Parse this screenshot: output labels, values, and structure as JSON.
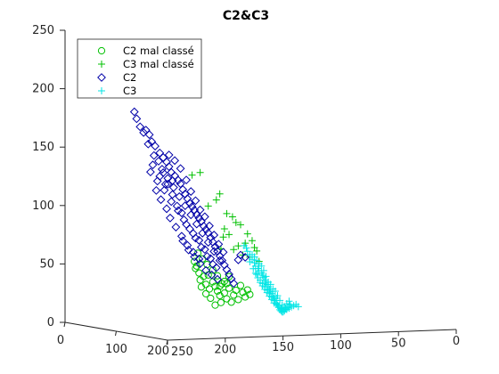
{
  "chart_data": {
    "type": "scatter",
    "projection": "3d",
    "title": "C2&C3",
    "xlabel": "",
    "ylabel": "",
    "zlabel": "",
    "grid": false,
    "legend_location": "top-left",
    "axis_ranges": {
      "a": [
        0,
        200
      ],
      "b": [
        0,
        250
      ],
      "z": [
        0,
        250
      ]
    },
    "ticks": {
      "z": [
        "0",
        "50",
        "100",
        "150",
        "200",
        "250"
      ],
      "a": [
        "0",
        "100",
        "200"
      ],
      "b": [
        "250",
        "200",
        "150",
        "100",
        "50",
        "0"
      ]
    },
    "legend": [
      {
        "label": "C2 mal classé",
        "marker": "circle",
        "color": "#00c000"
      },
      {
        "label": "C3 mal classé",
        "marker": "plus",
        "color": "#00c000"
      },
      {
        "label": "C2",
        "marker": "diamond",
        "color": "#0000a8"
      },
      {
        "label": "C3",
        "marker": "plus",
        "color": "#00e5e5"
      }
    ],
    "series": [
      {
        "name": "C2 mal classé",
        "marker": "circle",
        "color": "#00c000",
        "points": [
          [
            0,
            135,
            55
          ],
          [
            0,
            138,
            48
          ],
          [
            0,
            137,
            42
          ],
          [
            0,
            134,
            38
          ],
          [
            0,
            133,
            32
          ],
          [
            0,
            130,
            35
          ],
          [
            0,
            128,
            28
          ],
          [
            0,
            125,
            24
          ],
          [
            0,
            122,
            30
          ],
          [
            0,
            120,
            26
          ],
          [
            0,
            118,
            22
          ],
          [
            0,
            116,
            18
          ],
          [
            0,
            114,
            28
          ],
          [
            0,
            112,
            20
          ],
          [
            0,
            110,
            15
          ],
          [
            0,
            108,
            24
          ],
          [
            0,
            106,
            12
          ],
          [
            0,
            104,
            18
          ],
          [
            0,
            102,
            22
          ],
          [
            0,
            100,
            14
          ],
          [
            0,
            98,
            26
          ],
          [
            0,
            96,
            20
          ],
          [
            0,
            94,
            16
          ],
          [
            0,
            92,
            22
          ],
          [
            0,
            90,
            18
          ],
          [
            0,
            118,
            35
          ],
          [
            0,
            122,
            40
          ],
          [
            0,
            127,
            45
          ],
          [
            0,
            131,
            50
          ],
          [
            0,
            136,
            44
          ],
          [
            0,
            112,
            30
          ],
          [
            0,
            108,
            34
          ],
          [
            0,
            115,
            12
          ],
          [
            0,
            120,
            10
          ],
          [
            0,
            124,
            16
          ],
          [
            0,
            128,
            20
          ],
          [
            0,
            132,
            26
          ],
          [
            0,
            126,
            36
          ],
          [
            0,
            116,
            26
          ],
          [
            0,
            110,
            28
          ]
        ]
      },
      {
        "name": "C3 mal classé",
        "marker": "plus",
        "color": "#00c000",
        "points": [
          [
            0,
            205,
            220
          ],
          [
            0,
            133,
            124
          ],
          [
            0,
            140,
            122
          ],
          [
            0,
            116,
            105
          ],
          [
            0,
            110,
            88
          ],
          [
            0,
            105,
            85
          ],
          [
            0,
            102,
            80
          ],
          [
            0,
            112,
            75
          ],
          [
            0,
            98,
            78
          ],
          [
            0,
            94,
            62
          ],
          [
            0,
            88,
            64
          ],
          [
            0,
            86,
            58
          ],
          [
            0,
            84,
            55
          ],
          [
            0,
            108,
            70
          ],
          [
            0,
            113,
            68
          ],
          [
            0,
            92,
            70
          ],
          [
            0,
            100,
            60
          ],
          [
            0,
            96,
            52
          ],
          [
            0,
            90,
            50
          ],
          [
            0,
            82,
            46
          ],
          [
            0,
            104,
            57
          ],
          [
            0,
            119,
            100
          ],
          [
            0,
            126,
            95
          ],
          [
            0,
            115,
            58
          ]
        ]
      },
      {
        "name": "C2",
        "marker": "diamond",
        "color": "#0000a8",
        "points": [
          [
            0,
            190,
            178
          ],
          [
            0,
            188,
            172
          ],
          [
            0,
            180,
            162
          ],
          [
            0,
            177,
            158
          ],
          [
            0,
            175,
            152
          ],
          [
            0,
            172,
            148
          ],
          [
            0,
            168,
            142
          ],
          [
            0,
            165,
            138
          ],
          [
            0,
            162,
            134
          ],
          [
            0,
            160,
            130
          ],
          [
            0,
            158,
            125
          ],
          [
            0,
            155,
            122
          ],
          [
            0,
            152,
            118
          ],
          [
            0,
            150,
            115
          ],
          [
            0,
            148,
            110
          ],
          [
            0,
            146,
            106
          ],
          [
            0,
            144,
            102
          ],
          [
            0,
            142,
            98
          ],
          [
            0,
            140,
            95
          ],
          [
            0,
            138,
            92
          ],
          [
            0,
            136,
            88
          ],
          [
            0,
            134,
            85
          ],
          [
            0,
            132,
            82
          ],
          [
            0,
            130,
            78
          ],
          [
            0,
            128,
            75
          ],
          [
            0,
            126,
            72
          ],
          [
            0,
            124,
            68
          ],
          [
            0,
            122,
            64
          ],
          [
            0,
            120,
            60
          ],
          [
            0,
            118,
            56
          ],
          [
            0,
            116,
            52
          ],
          [
            0,
            114,
            48
          ],
          [
            0,
            112,
            44
          ],
          [
            0,
            110,
            40
          ],
          [
            0,
            108,
            36
          ],
          [
            0,
            106,
            32
          ],
          [
            0,
            104,
            28
          ],
          [
            0,
            166,
            128
          ],
          [
            0,
            161,
            120
          ],
          [
            0,
            156,
            112
          ],
          [
            0,
            151,
            104
          ],
          [
            0,
            146,
            96
          ],
          [
            0,
            141,
            88
          ],
          [
            0,
            136,
            80
          ],
          [
            0,
            131,
            72
          ],
          [
            0,
            126,
            64
          ],
          [
            0,
            121,
            56
          ],
          [
            0,
            116,
            48
          ],
          [
            0,
            170,
            118
          ],
          [
            0,
            164,
            110
          ],
          [
            0,
            158,
            100
          ],
          [
            0,
            152,
            92
          ],
          [
            0,
            147,
            84
          ],
          [
            0,
            142,
            76
          ],
          [
            0,
            137,
            68
          ],
          [
            0,
            132,
            60
          ],
          [
            0,
            127,
            52
          ],
          [
            0,
            122,
            45
          ],
          [
            0,
            174,
            132
          ],
          [
            0,
            168,
            122
          ],
          [
            0,
            163,
            115
          ],
          [
            0,
            157,
            106
          ],
          [
            0,
            153,
            96
          ],
          [
            0,
            149,
            90
          ],
          [
            0,
            145,
            80
          ],
          [
            0,
            139,
            72
          ],
          [
            0,
            134,
            66
          ],
          [
            0,
            129,
            58
          ],
          [
            0,
            124,
            50
          ],
          [
            0,
            119,
            42
          ],
          [
            0,
            176,
            126
          ],
          [
            0,
            171,
            110
          ],
          [
            0,
            167,
            102
          ],
          [
            0,
            162,
            94
          ],
          [
            0,
            159,
            86
          ],
          [
            0,
            154,
            78
          ],
          [
            0,
            149,
            70
          ],
          [
            0,
            144,
            62
          ],
          [
            0,
            139,
            56
          ],
          [
            0,
            134,
            50
          ],
          [
            0,
            160,
            140
          ],
          [
            0,
            155,
            135
          ],
          [
            0,
            150,
            128
          ],
          [
            0,
            145,
            118
          ],
          [
            0,
            141,
            108
          ],
          [
            0,
            137,
            100
          ],
          [
            0,
            133,
            92
          ],
          [
            0,
            129,
            86
          ],
          [
            0,
            125,
            78
          ],
          [
            0,
            121,
            70
          ],
          [
            0,
            117,
            62
          ],
          [
            0,
            113,
            55
          ],
          [
            0,
            98,
            52
          ],
          [
            0,
            94,
            50
          ],
          [
            0,
            100,
            48
          ],
          [
            0,
            148,
            66
          ],
          [
            0,
            143,
            58
          ],
          [
            0,
            138,
            52
          ],
          [
            0,
            133,
            46
          ],
          [
            0,
            128,
            40
          ],
          [
            0,
            123,
            36
          ],
          [
            0,
            118,
            32
          ],
          [
            0,
            185,
            165
          ],
          [
            0,
            182,
            160
          ],
          [
            0,
            178,
            150
          ],
          [
            0,
            173,
            140
          ],
          [
            0,
            169,
            135
          ],
          [
            0,
            165,
            125
          ],
          [
            0,
            161,
            115
          ],
          [
            0,
            157,
            118
          ]
        ]
      },
      {
        "name": "C3",
        "marker": "plus",
        "color": "#00e5e5",
        "points": [
          [
            0,
            95,
            60
          ],
          [
            0,
            92,
            55
          ],
          [
            0,
            90,
            52
          ],
          [
            0,
            88,
            48
          ],
          [
            0,
            86,
            45
          ],
          [
            0,
            85,
            42
          ],
          [
            0,
            83,
            40
          ],
          [
            0,
            82,
            38
          ],
          [
            0,
            80,
            36
          ],
          [
            0,
            79,
            34
          ],
          [
            0,
            78,
            32
          ],
          [
            0,
            77,
            30
          ],
          [
            0,
            76,
            28
          ],
          [
            0,
            75,
            26
          ],
          [
            0,
            74,
            24
          ],
          [
            0,
            73,
            22
          ],
          [
            0,
            72,
            20
          ],
          [
            0,
            71,
            18
          ],
          [
            0,
            70,
            16
          ],
          [
            0,
            69,
            14
          ],
          [
            0,
            68,
            12
          ],
          [
            0,
            67,
            10
          ],
          [
            0,
            66,
            8
          ],
          [
            0,
            65,
            6
          ],
          [
            0,
            64,
            4
          ],
          [
            0,
            63,
            3
          ],
          [
            0,
            62,
            2
          ],
          [
            0,
            61,
            2
          ],
          [
            0,
            60,
            3
          ],
          [
            0,
            58,
            4
          ],
          [
            0,
            56,
            5
          ],
          [
            0,
            54,
            6
          ],
          [
            0,
            52,
            7
          ],
          [
            0,
            50,
            8
          ],
          [
            0,
            48,
            6
          ],
          [
            0,
            84,
            35
          ],
          [
            0,
            81,
            30
          ],
          [
            0,
            79,
            27
          ],
          [
            0,
            77,
            24
          ],
          [
            0,
            75,
            21
          ],
          [
            0,
            73,
            18
          ],
          [
            0,
            71,
            15
          ],
          [
            0,
            69,
            12
          ],
          [
            0,
            67,
            9
          ],
          [
            0,
            65,
            7
          ],
          [
            0,
            63,
            5
          ],
          [
            0,
            61,
            4
          ],
          [
            0,
            59,
            5
          ],
          [
            0,
            57,
            6
          ],
          [
            0,
            55,
            8
          ],
          [
            0,
            87,
            40
          ],
          [
            0,
            85,
            36
          ],
          [
            0,
            83,
            32
          ],
          [
            0,
            81,
            28
          ],
          [
            0,
            79,
            25
          ],
          [
            0,
            77,
            22
          ],
          [
            0,
            75,
            19
          ],
          [
            0,
            73,
            16
          ],
          [
            0,
            71,
            13
          ],
          [
            0,
            69,
            10
          ],
          [
            0,
            67,
            14
          ],
          [
            0,
            70,
            22
          ],
          [
            0,
            74,
            28
          ],
          [
            0,
            78,
            38
          ],
          [
            0,
            82,
            44
          ],
          [
            0,
            86,
            50
          ],
          [
            0,
            90,
            46
          ],
          [
            0,
            93,
            58
          ],
          [
            0,
            76,
            33
          ],
          [
            0,
            72,
            26
          ],
          [
            0,
            66,
            16
          ],
          [
            0,
            64,
            12
          ],
          [
            0,
            62,
            8
          ],
          [
            0,
            60,
            6
          ],
          [
            0,
            58,
            9
          ],
          [
            0,
            56,
            11
          ],
          [
            0,
            68,
            20
          ],
          [
            0,
            80,
            42
          ],
          [
            0,
            84,
            47
          ],
          [
            0,
            88,
            52
          ]
        ]
      }
    ]
  }
}
